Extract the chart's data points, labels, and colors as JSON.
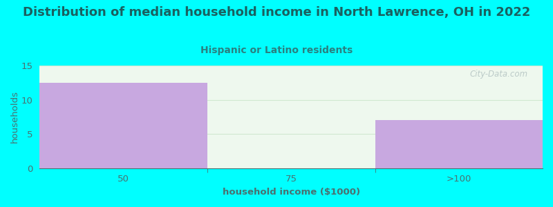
{
  "title": "Distribution of median household income in North Lawrence, OH in 2022",
  "subtitle": "Hispanic or Latino residents",
  "categories": [
    "50",
    "75",
    ">100"
  ],
  "values": [
    12.5,
    0.0,
    7.0
  ],
  "bar_colors": [
    "#c8a8e0",
    "#daf0da",
    "#c8a8e0"
  ],
  "background_color": "#00ffff",
  "plot_bg_color_top": "#e8f5e8",
  "plot_bg_color_bottom": "#f8fff8",
  "xlabel": "household income ($1000)",
  "ylabel": "households",
  "ylim": [
    0,
    15
  ],
  "yticks": [
    0,
    5,
    10,
    15
  ],
  "title_color": "#1a6060",
  "subtitle_color": "#2a8080",
  "axis_color": "#4a7070",
  "grid_color": "#d0e8d0",
  "watermark": "City-Data.com",
  "title_fontsize": 13,
  "subtitle_fontsize": 10,
  "label_fontsize": 9.5
}
